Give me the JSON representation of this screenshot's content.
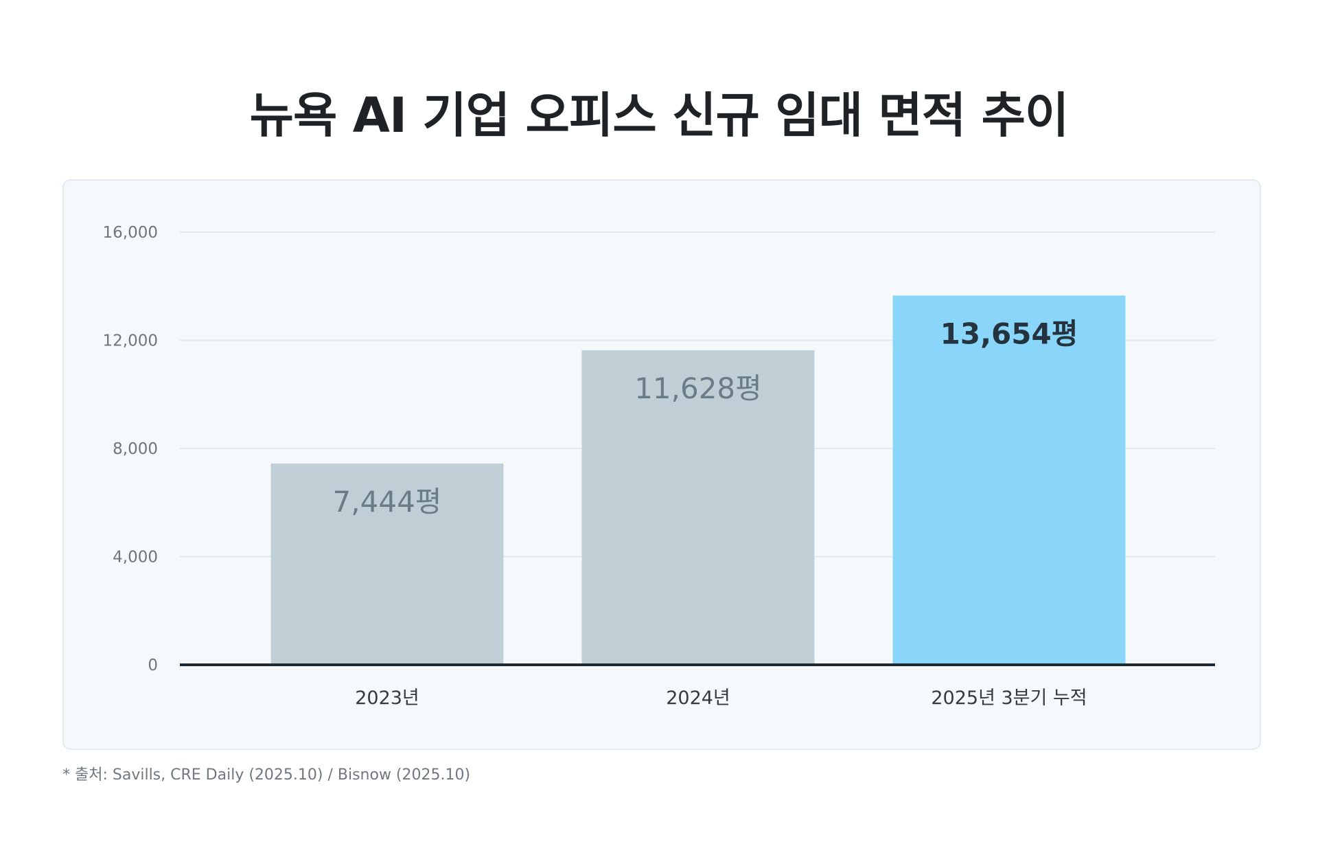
{
  "title": "뉴욕 AI 기업 오피스 신규 임대 면적 추이",
  "source_note": "* 출처: Savills, CRE Daily (2025.10) / Bisnow (2025.10)",
  "colors": {
    "bar_default": "#c0ced6",
    "bar_highlight": "#8ad6fb",
    "label_default": "#6a7c88",
    "label_highlight": "#24333d",
    "baseline": "#1e2a33",
    "grid": "#e3e9ed",
    "tick_text": "#6d767c",
    "category_text": "#333b41"
  },
  "chart_data": {
    "type": "bar",
    "title": "뉴욕 AI 기업 오피스 신규 임대 면적 추이",
    "xlabel": "",
    "ylabel": "",
    "ylim": [
      0,
      16000
    ],
    "yticks": [
      0,
      4000,
      8000,
      12000,
      16000
    ],
    "ytick_labels": [
      "0",
      "4,000",
      "8,000",
      "12,000",
      "16,000"
    ],
    "grid": true,
    "categories": [
      "2023년",
      "2024년",
      "2025년 3분기 누적"
    ],
    "values": [
      7444,
      11628,
      13654
    ],
    "data_labels": [
      "7,444평",
      "11,628평",
      "13,654평"
    ],
    "highlight_index": 2
  }
}
